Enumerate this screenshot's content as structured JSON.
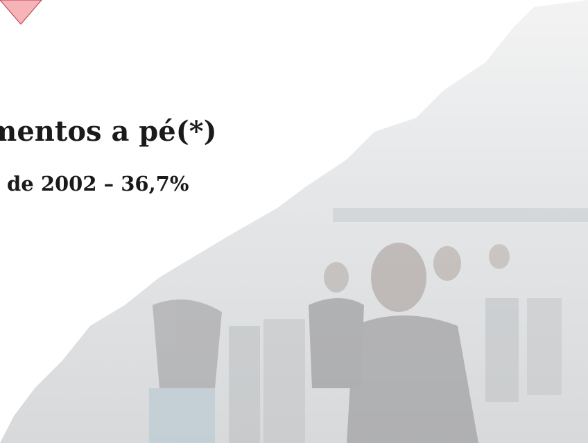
{
  "slide": {
    "title": "mentos a pé(*)",
    "subtitle": "de 2002 – 36,7%"
  }
}
